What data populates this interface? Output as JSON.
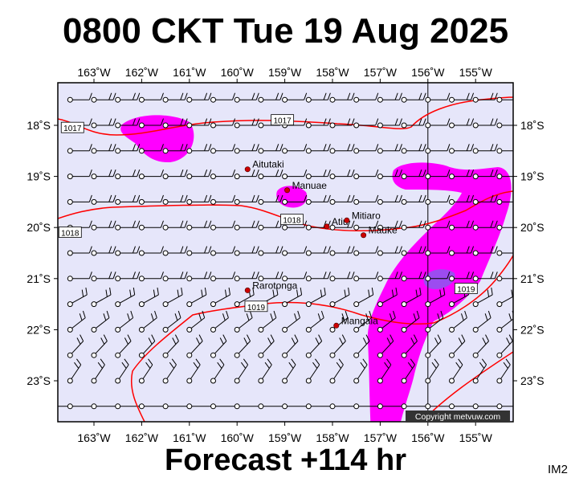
{
  "title": "0800 CKT Tue 19 Aug 2025",
  "footer": "Forecast +114 hr",
  "code": "IM2",
  "copyright": "Copyright metvuw.com",
  "colors": {
    "background": "#e6e6fa",
    "precip_light": "#ff00ff",
    "precip_heavy": "#9c4cf0",
    "isobar": "#ff0000",
    "coast_dot": "#cc0000"
  },
  "axes": {
    "lon_labels": [
      "163˚W",
      "162˚W",
      "161˚W",
      "160˚W",
      "159˚W",
      "158˚W",
      "157˚W",
      "156˚W",
      "155˚W"
    ],
    "lon_values": [
      -163,
      -162,
      -161,
      -160,
      -159,
      -158,
      -157,
      -156,
      -155
    ],
    "lat_labels": [
      "18˚S",
      "19˚S",
      "20˚S",
      "21˚S",
      "22˚S",
      "23˚S"
    ],
    "lat_values": [
      -18,
      -19,
      -20,
      -21,
      -22,
      -23
    ]
  },
  "places": [
    {
      "name": "Aitutaki",
      "lon": -159.78,
      "lat": -18.86
    },
    {
      "name": "Manuae",
      "lon": -158.95,
      "lat": -19.27
    },
    {
      "name": "Atiu",
      "lon": -158.12,
      "lat": -19.98
    },
    {
      "name": "Mitiaro",
      "lon": -157.7,
      "lat": -19.86
    },
    {
      "name": "Mauke",
      "lon": -157.35,
      "lat": -20.15
    },
    {
      "name": "Rarotonga",
      "lon": -159.78,
      "lat": -21.23
    },
    {
      "name": "Mangaia",
      "lon": -157.92,
      "lat": -21.92
    }
  ],
  "isobar_labels": [
    {
      "text": "1017",
      "lon": -159.05,
      "lat": -17.9
    },
    {
      "text": "1017",
      "lon": -163.45,
      "lat": -18.05
    },
    {
      "text": "1018",
      "lon": -158.85,
      "lat": -19.85
    },
    {
      "text": "1018",
      "lon": -163.5,
      "lat": -20.1
    },
    {
      "text": "1019",
      "lon": -159.6,
      "lat": -21.55
    },
    {
      "text": "1019",
      "lon": -155.2,
      "lat": -21.2
    }
  ]
}
